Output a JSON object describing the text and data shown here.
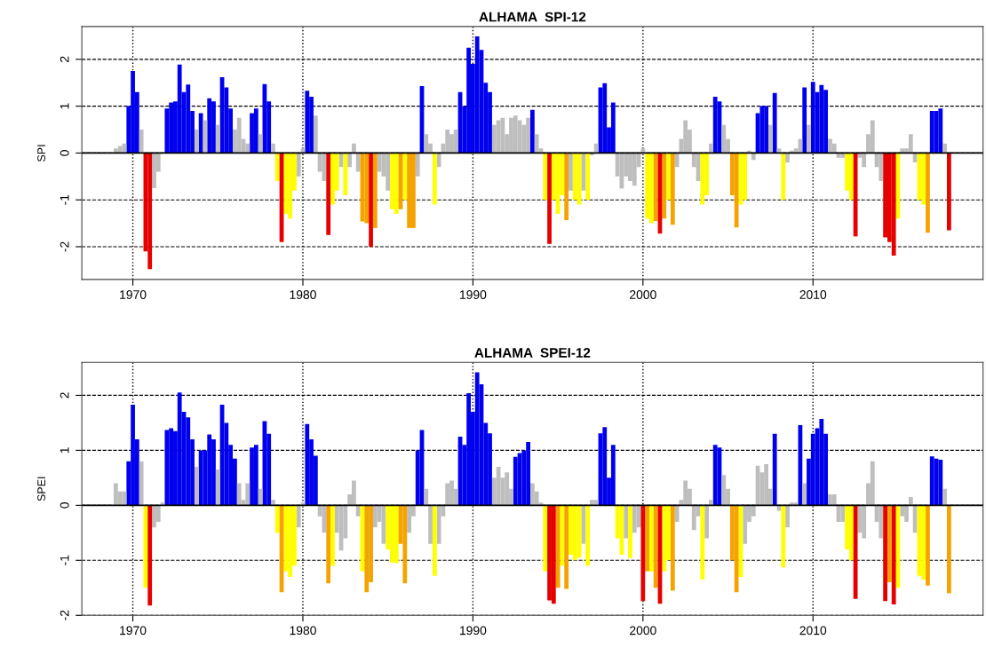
{
  "chart_data": [
    {
      "type": "bar",
      "title": "ALHAMA  SPI-12",
      "ylabel": "SPI",
      "xlim": [
        1967,
        2020
      ],
      "ylim": [
        -2.7,
        2.7
      ],
      "xticks": [
        1970,
        1980,
        1990,
        2000,
        2010
      ],
      "yticks": [
        -2,
        -1,
        0,
        1,
        2
      ],
      "grid": true,
      "legend": false,
      "ref_lines": [
        {
          "axis": "y",
          "value": 0,
          "color": "#000000",
          "line_style": "solid"
        }
      ],
      "series": [
        {
          "color": "#0000ee",
          "x": [
            1969.75,
            1970.0,
            1970.25,
            1972.0,
            1972.25,
            1972.5,
            1972.75,
            1973.0,
            1973.25,
            1973.5,
            1974.0,
            1974.5,
            1974.75,
            1975.25,
            1975.5,
            1975.75,
            1977.0,
            1977.25,
            1977.75,
            1978.0,
            1980.25,
            1980.5,
            1987.0,
            1989.25,
            1989.5,
            1989.75,
            1990.0,
            1990.25,
            1990.5,
            1990.75,
            1991.0,
            1993.5,
            1997.5,
            1997.75,
            1998.0,
            1998.25,
            2004.25,
            2004.5,
            2006.75,
            2007.0,
            2007.25,
            2007.75,
            2009.5,
            2010.0,
            2010.25,
            2010.5,
            2010.75,
            2017.0,
            2017.25,
            2017.5
          ],
          "values": [
            1.0,
            1.75,
            1.3,
            0.95,
            1.08,
            1.1,
            1.89,
            1.3,
            1.46,
            0.9,
            0.85,
            1.17,
            1.1,
            1.62,
            1.4,
            0.95,
            0.85,
            0.95,
            1.47,
            1.1,
            1.33,
            1.2,
            1.43,
            1.3,
            1.0,
            2.25,
            1.9,
            2.49,
            2.2,
            1.5,
            1.3,
            0.92,
            1.4,
            1.49,
            0.55,
            1.08,
            1.2,
            1.1,
            0.85,
            1.0,
            1.0,
            1.28,
            1.4,
            1.52,
            1.3,
            1.45,
            1.35,
            0.9,
            0.9,
            0.95
          ]
        },
        {
          "color": "#bebebe",
          "x": [
            1969.0,
            1969.25,
            1969.5,
            1970.5,
            1971.25,
            1971.5,
            1973.75,
            1974.25,
            1975.0,
            1976.0,
            1976.25,
            1976.5,
            1976.75,
            1977.5,
            1978.25,
            1979.75,
            1980.0,
            1980.75,
            1981.0,
            1981.25,
            1982.25,
            1982.75,
            1983.0,
            1983.25,
            1984.5,
            1984.75,
            1985.0,
            1986.75,
            1987.25,
            1987.5,
            1988.0,
            1988.25,
            1988.5,
            1988.75,
            1989.0,
            1991.25,
            1991.5,
            1991.75,
            1992.0,
            1992.25,
            1992.5,
            1992.75,
            1993.0,
            1993.25,
            1993.75,
            1994.0,
            1995.75,
            1996.5,
            1997.0,
            1997.25,
            1998.5,
            1998.75,
            1999.0,
            1999.25,
            1999.5,
            1999.75,
            2000.0,
            2002.0,
            2002.25,
            2002.5,
            2002.75,
            2003.0,
            2003.25,
            2004.0,
            2004.75,
            2005.0,
            2006.25,
            2006.5,
            2007.5,
            2008.0,
            2008.5,
            2008.75,
            2009.0,
            2009.25,
            2009.75,
            2011.0,
            2011.25,
            2011.5,
            2011.75,
            2012.75,
            2013.0,
            2013.25,
            2013.5,
            2013.75,
            2014.0,
            2015.25,
            2015.5,
            2015.75,
            2016.0,
            2017.75
          ],
          "values": [
            0.1,
            0.15,
            0.2,
            0.5,
            -0.75,
            -0.4,
            0.5,
            0.7,
            0.6,
            0.5,
            0.75,
            0.3,
            0.2,
            0.4,
            0.2,
            -0.5,
            0.1,
            0.8,
            -0.4,
            -0.6,
            -0.3,
            -0.3,
            0.2,
            -0.4,
            -0.4,
            -0.5,
            -0.8,
            -0.5,
            0.4,
            0.2,
            -0.3,
            0.2,
            0.5,
            0.4,
            0.5,
            0.6,
            0.7,
            0.75,
            0.4,
            0.75,
            0.8,
            0.7,
            0.6,
            0.75,
            0.4,
            0.1,
            -0.8,
            -0.8,
            -0.05,
            0.2,
            -0.5,
            -0.76,
            -0.5,
            -0.6,
            -0.7,
            -0.3,
            0.1,
            -0.3,
            0.3,
            0.7,
            0.5,
            -0.3,
            -0.6,
            0.2,
            0.6,
            0.3,
            0.05,
            -0.15,
            0.6,
            0.1,
            -0.2,
            0.05,
            0.1,
            0.3,
            0.6,
            0.3,
            0.2,
            -0.1,
            -0.1,
            -0.1,
            -0.3,
            0.4,
            0.7,
            -0.3,
            -0.6,
            0.1,
            0.1,
            0.4,
            -0.2,
            0.2
          ]
        },
        {
          "color": "#ffff00",
          "x": [
            1978.5,
            1979.0,
            1979.25,
            1979.5,
            1981.75,
            1982.0,
            1982.5,
            1985.25,
            1985.5,
            1986.0,
            1987.75,
            1994.25,
            1994.75,
            1995.0,
            1995.25,
            1996.0,
            1996.25,
            1996.75,
            2000.25,
            2000.5,
            2001.5,
            2003.5,
            2003.75,
            2005.75,
            2006.0,
            2008.25,
            2012.0,
            2012.25,
            2015.0,
            2016.25,
            2016.5
          ],
          "values": [
            -0.6,
            -1.3,
            -1.4,
            -0.8,
            -1.1,
            -0.8,
            -0.9,
            -1.2,
            -1.3,
            -1.0,
            -1.1,
            -1.0,
            -1.0,
            -1.3,
            -0.9,
            -1.0,
            -1.1,
            -1.0,
            -1.4,
            -1.5,
            -1.0,
            -1.1,
            -0.9,
            -1.1,
            -1.0,
            -1.0,
            -0.8,
            -1.0,
            -1.4,
            -1.0,
            -1.1
          ]
        },
        {
          "color": "#f5a300",
          "x": [
            1983.5,
            1983.75,
            1984.25,
            1985.75,
            1986.25,
            1986.5,
            1995.5,
            2000.75,
            2001.25,
            2001.75,
            2005.25,
            2005.5,
            2016.75
          ],
          "values": [
            -1.46,
            -1.5,
            -1.6,
            -1.2,
            -1.6,
            -1.6,
            -1.43,
            -1.45,
            -1.4,
            -1.53,
            -0.9,
            -1.59,
            -1.7
          ]
        },
        {
          "color": "#e60000",
          "x": [
            1970.75,
            1971.0,
            1978.75,
            1981.5,
            1984.0,
            1994.5,
            2001.0,
            2012.5,
            2014.25,
            2014.5,
            2014.75,
            2018.0
          ],
          "values": [
            -2.1,
            -2.48,
            -1.9,
            -1.75,
            -2.0,
            -1.94,
            -1.72,
            -1.78,
            -1.8,
            -1.9,
            -2.19,
            -1.65
          ]
        }
      ]
    },
    {
      "type": "bar",
      "title": "ALHAMA  SPEI-12",
      "ylabel": "SPEI",
      "xlim": [
        1967,
        2020
      ],
      "ylim": [
        -2.0,
        2.6
      ],
      "xticks": [
        1970,
        1980,
        1990,
        2000,
        2010
      ],
      "yticks": [
        -2,
        -1,
        0,
        1,
        2
      ],
      "grid": true,
      "legend": false,
      "ref_lines": [
        {
          "axis": "y",
          "value": 0,
          "color": "#000000",
          "line_style": "solid"
        }
      ],
      "series": [
        {
          "color": "#0000ee",
          "x": [
            1969.75,
            1970.0,
            1970.25,
            1972.0,
            1972.25,
            1972.5,
            1972.75,
            1973.0,
            1973.25,
            1973.5,
            1974.0,
            1974.25,
            1974.5,
            1974.75,
            1975.25,
            1975.5,
            1975.75,
            1976.0,
            1977.0,
            1977.25,
            1977.75,
            1978.0,
            1980.25,
            1980.5,
            1980.75,
            1986.75,
            1987.0,
            1989.25,
            1989.5,
            1989.75,
            1990.0,
            1990.25,
            1990.5,
            1990.75,
            1991.0,
            1992.5,
            1992.75,
            1993.0,
            1993.25,
            1997.5,
            1997.75,
            1998.0,
            1998.25,
            2004.25,
            2004.5,
            2007.75,
            2009.25,
            2009.75,
            2010.0,
            2010.25,
            2010.5,
            2010.75,
            2017.0,
            2017.25,
            2017.5
          ],
          "values": [
            0.8,
            1.83,
            1.2,
            1.37,
            1.4,
            1.35,
            2.05,
            1.7,
            1.6,
            1.2,
            1.0,
            1.0,
            1.29,
            1.2,
            1.83,
            1.5,
            1.1,
            0.85,
            1.05,
            1.1,
            1.53,
            1.3,
            1.48,
            1.2,
            0.9,
            1.0,
            1.37,
            1.25,
            1.1,
            2.04,
            1.7,
            2.42,
            2.2,
            1.5,
            1.31,
            0.88,
            0.95,
            1.0,
            1.15,
            1.31,
            1.42,
            0.5,
            1.1,
            1.1,
            1.05,
            1.3,
            1.46,
            0.85,
            1.3,
            1.4,
            1.57,
            1.3,
            0.89,
            0.85,
            0.83
          ]
        },
        {
          "color": "#bebebe",
          "x": [
            1969.0,
            1969.25,
            1969.5,
            1970.5,
            1971.25,
            1971.5,
            1971.75,
            1973.75,
            1975.0,
            1976.25,
            1976.5,
            1976.75,
            1977.5,
            1978.25,
            1979.75,
            1980.0,
            1981.0,
            1981.25,
            1982.0,
            1982.25,
            1982.5,
            1982.75,
            1983.0,
            1983.25,
            1984.25,
            1984.5,
            1984.75,
            1986.25,
            1986.5,
            1987.25,
            1987.5,
            1988.0,
            1988.25,
            1988.5,
            1988.75,
            1989.0,
            1991.25,
            1991.5,
            1991.75,
            1992.0,
            1992.25,
            1993.5,
            1993.75,
            1994.0,
            1996.5,
            1997.0,
            1997.25,
            1999.0,
            1999.5,
            1999.75,
            2002.0,
            2002.25,
            2002.5,
            2002.75,
            2003.0,
            2003.25,
            2003.75,
            2004.0,
            2004.75,
            2005.0,
            2006.0,
            2006.25,
            2006.5,
            2006.75,
            2007.0,
            2007.25,
            2007.5,
            2008.0,
            2008.5,
            2008.75,
            2009.0,
            2009.5,
            2011.0,
            2011.25,
            2011.5,
            2011.75,
            2012.75,
            2013.0,
            2013.25,
            2013.5,
            2013.75,
            2014.0,
            2015.25,
            2015.5,
            2015.75,
            2016.0,
            2017.75
          ],
          "values": [
            0.4,
            0.25,
            0.25,
            0.8,
            -0.4,
            -0.3,
            0.05,
            0.7,
            0.65,
            0.4,
            0.1,
            0.4,
            0.3,
            0.1,
            -0.4,
            0.05,
            -0.2,
            -0.5,
            -0.5,
            -0.82,
            -0.6,
            0.2,
            0.45,
            -0.2,
            -0.4,
            -0.3,
            -0.7,
            -0.5,
            -0.2,
            0.3,
            -0.7,
            -0.7,
            -0.2,
            0.4,
            0.45,
            0.3,
            0.5,
            0.7,
            0.5,
            0.6,
            0.3,
            0.4,
            0.25,
            0.05,
            -0.7,
            0.1,
            0.1,
            -0.6,
            -0.5,
            -0.4,
            -0.3,
            0.1,
            0.45,
            0.3,
            -0.45,
            -0.2,
            -0.6,
            0.1,
            0.55,
            0.3,
            -0.7,
            -0.3,
            -0.2,
            0.72,
            0.6,
            0.75,
            0.3,
            -0.1,
            -0.4,
            0.05,
            0.05,
            0.4,
            0.2,
            0.2,
            -0.3,
            -0.3,
            -0.5,
            -0.6,
            0.4,
            0.8,
            -0.3,
            -0.6,
            -0.2,
            -0.3,
            0.15,
            -0.5,
            0.3
          ]
        },
        {
          "color": "#ffff00",
          "x": [
            1970.75,
            1978.5,
            1979.0,
            1979.25,
            1979.5,
            1981.75,
            1983.5,
            1985.0,
            1985.25,
            1985.5,
            1987.75,
            1994.25,
            1995.25,
            1995.75,
            1996.0,
            1996.25,
            1996.75,
            1998.5,
            1998.75,
            1999.25,
            2000.5,
            2001.25,
            2001.5,
            2003.5,
            2005.75,
            2008.25,
            2012.0,
            2012.25,
            2015.0,
            2016.25,
            2016.5
          ],
          "values": [
            -1.5,
            -0.5,
            -1.2,
            -1.3,
            -1.1,
            -1.1,
            -1.2,
            -0.8,
            -1.04,
            -1.05,
            -1.28,
            -1.2,
            -1.1,
            -0.9,
            -1.0,
            -0.95,
            -1.1,
            -0.6,
            -0.9,
            -0.96,
            -1.2,
            -1.2,
            -1.0,
            -1.35,
            -1.3,
            -1.13,
            -0.8,
            -1.0,
            -1.5,
            -1.28,
            -1.35
          ]
        },
        {
          "color": "#f5a300",
          "x": [
            1978.75,
            1981.5,
            1983.75,
            1984.0,
            1985.75,
            1986.0,
            1995.0,
            1995.5,
            2000.25,
            2000.75,
            2001.75,
            2005.25,
            2005.5,
            2014.5,
            2016.75,
            2018.0
          ],
          "values": [
            -1.58,
            -1.42,
            -1.58,
            -1.4,
            -0.7,
            -1.42,
            -1.5,
            -1.52,
            -1.2,
            -1.5,
            -1.55,
            -1.0,
            -1.58,
            -1.4,
            -1.46,
            -1.6
          ]
        },
        {
          "color": "#e60000",
          "x": [
            1971.0,
            1994.5,
            1994.75,
            2000.0,
            2001.0,
            2012.5,
            2014.25,
            2014.75
          ],
          "values": [
            -1.82,
            -1.73,
            -1.79,
            -1.74,
            -1.79,
            -1.7,
            -1.74,
            -1.8
          ]
        }
      ]
    }
  ]
}
